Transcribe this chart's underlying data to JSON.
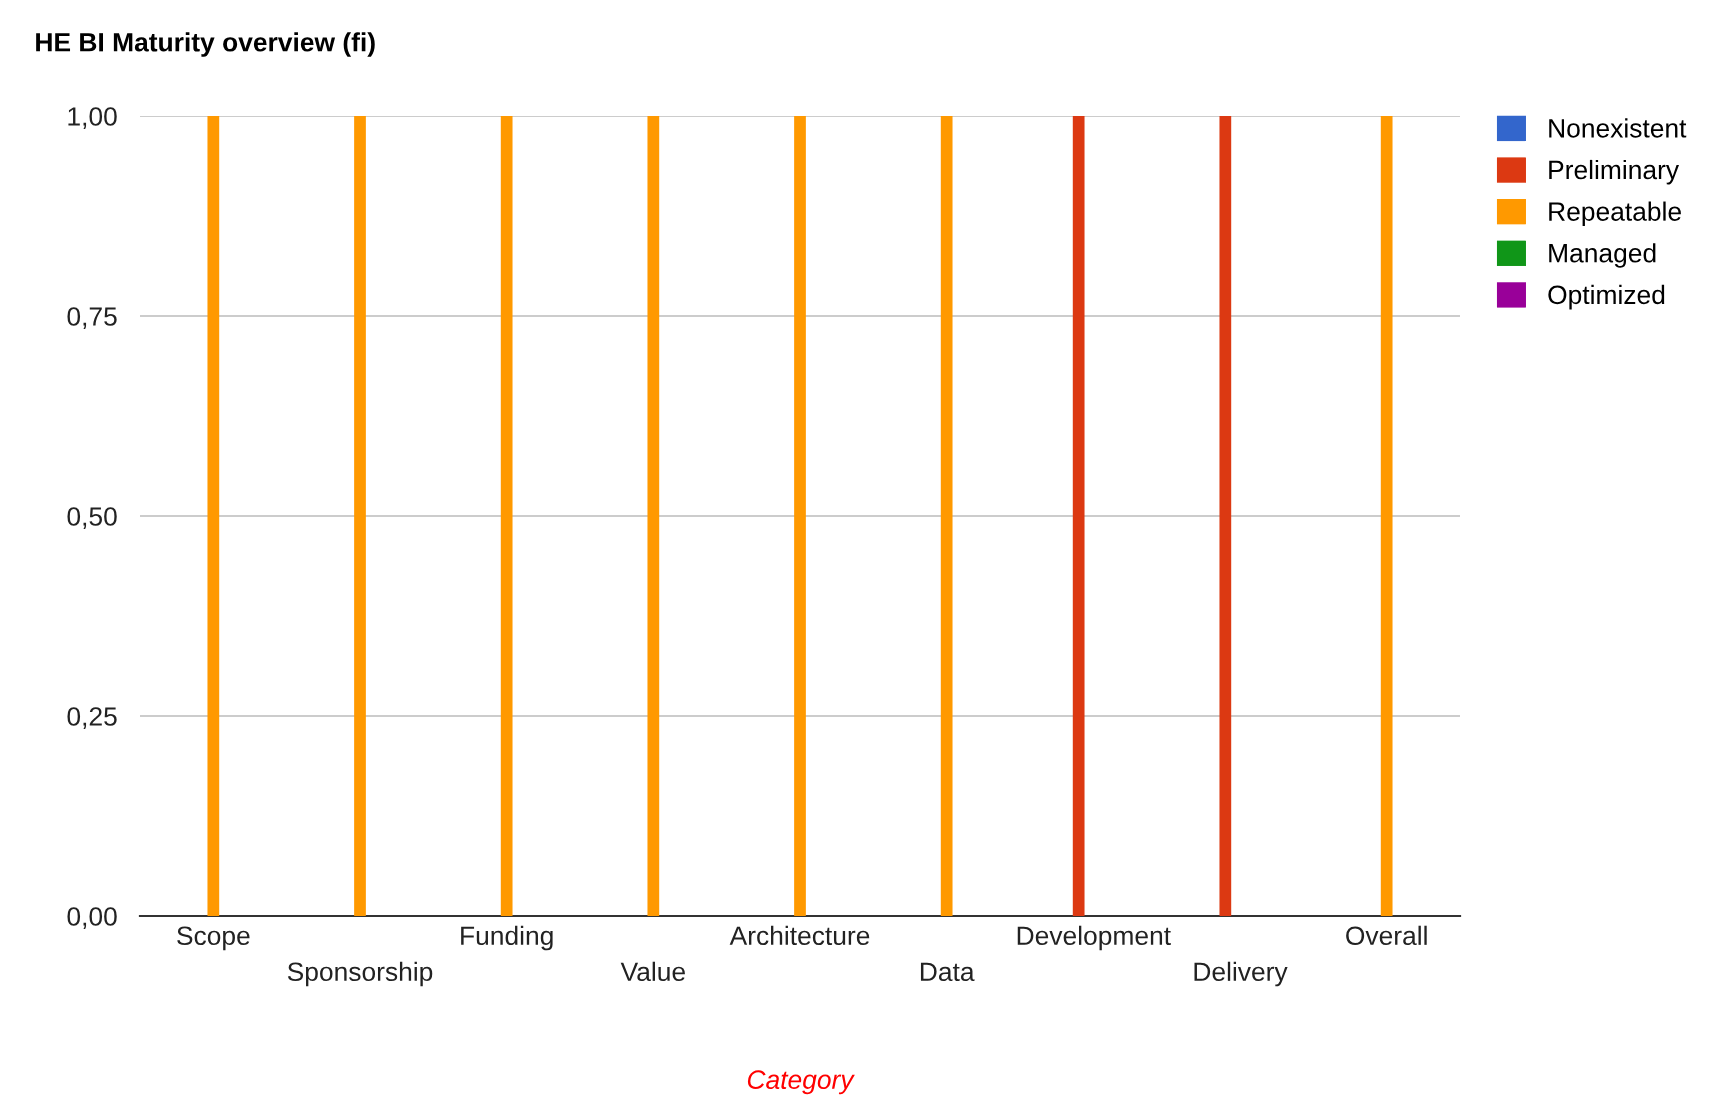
{
  "chart_data": {
    "type": "bar",
    "title": "HE BI Maturity overview (fi)",
    "xlabel": "Category",
    "categories": [
      "Scope",
      "Sponsorship",
      "Funding",
      "Value",
      "Architecture",
      "Data",
      "Development",
      "Delivery",
      "Overall"
    ],
    "series": [
      {
        "name": "Nonexistent",
        "color": "#3366cc",
        "values": [
          0,
          0,
          0,
          0,
          0,
          0,
          0,
          0,
          0
        ]
      },
      {
        "name": "Preliminary",
        "color": "#dc3912",
        "values": [
          0,
          0,
          0,
          0,
          0,
          0,
          1,
          1,
          0
        ]
      },
      {
        "name": "Repeatable",
        "color": "#ff9900",
        "values": [
          1,
          1,
          1,
          1,
          1,
          1,
          0,
          0,
          1
        ]
      },
      {
        "name": "Managed",
        "color": "#109618",
        "values": [
          0,
          0,
          0,
          0,
          0,
          0,
          0,
          0,
          0
        ]
      },
      {
        "name": "Optimized",
        "color": "#990099",
        "values": [
          0,
          0,
          0,
          0,
          0,
          0,
          0,
          0,
          0
        ]
      }
    ],
    "ylim": [
      0,
      1
    ],
    "yticks": [
      {
        "value": 0,
        "label": "0,00"
      },
      {
        "value": 0.25,
        "label": "0,25"
      },
      {
        "value": 0.5,
        "label": "0,50"
      },
      {
        "value": 0.75,
        "label": "0,75"
      },
      {
        "value": 1,
        "label": "1,00"
      }
    ],
    "grid": "y",
    "legend": "right"
  }
}
